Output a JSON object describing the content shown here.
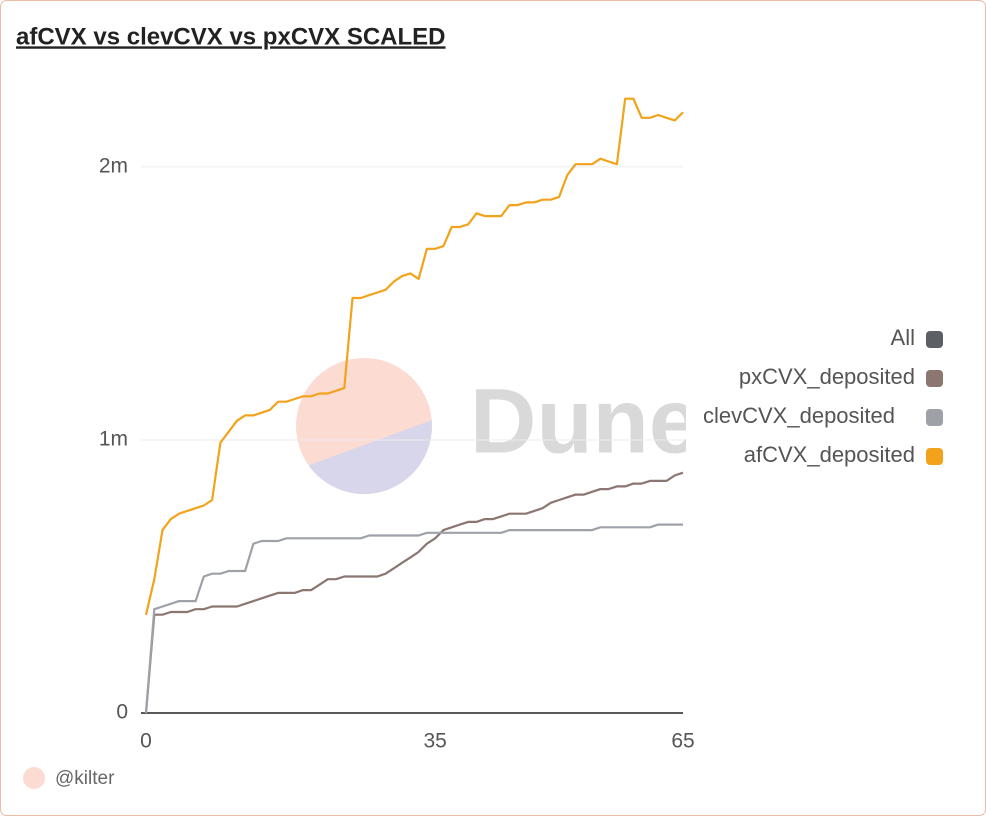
{
  "chart_data": {
    "type": "line",
    "title": "afCVX vs clevCVX vs pxCVX SCALED",
    "watermark": "Dune",
    "attribution": "@kilter",
    "legend_all": {
      "name": "All",
      "color": "#5b5f66"
    },
    "x": [
      0,
      1,
      2,
      3,
      4,
      5,
      6,
      7,
      8,
      9,
      10,
      11,
      12,
      13,
      14,
      15,
      16,
      17,
      18,
      19,
      20,
      21,
      22,
      23,
      24,
      25,
      26,
      27,
      28,
      29,
      30,
      31,
      32,
      33,
      34,
      35,
      36,
      37,
      38,
      39,
      40,
      41,
      42,
      43,
      44,
      45,
      46,
      47,
      48,
      49,
      50,
      51,
      52,
      53,
      54,
      55,
      56,
      57,
      58,
      59,
      60,
      61,
      62,
      63,
      64,
      65
    ],
    "series": [
      {
        "name": "pxCVX_deposited",
        "color": "#8c7672",
        "values": [
          0,
          360000,
          360000,
          370000,
          370000,
          370000,
          380000,
          380000,
          390000,
          390000,
          390000,
          390000,
          400000,
          410000,
          420000,
          430000,
          440000,
          440000,
          440000,
          450000,
          450000,
          470000,
          490000,
          490000,
          500000,
          500000,
          500000,
          500000,
          500000,
          510000,
          530000,
          550000,
          570000,
          590000,
          620000,
          640000,
          670000,
          680000,
          690000,
          700000,
          700000,
          710000,
          710000,
          720000,
          730000,
          730000,
          730000,
          740000,
          750000,
          770000,
          780000,
          790000,
          800000,
          800000,
          810000,
          820000,
          820000,
          830000,
          830000,
          840000,
          840000,
          850000,
          850000,
          850000,
          870000,
          880000
        ]
      },
      {
        "name": "clevCVX_deposited",
        "color": "#9ea2a8",
        "values": [
          0,
          380000,
          390000,
          400000,
          410000,
          410000,
          410000,
          500000,
          510000,
          510000,
          520000,
          520000,
          520000,
          620000,
          630000,
          630000,
          630000,
          640000,
          640000,
          640000,
          640000,
          640000,
          640000,
          640000,
          640000,
          640000,
          640000,
          650000,
          650000,
          650000,
          650000,
          650000,
          650000,
          650000,
          660000,
          660000,
          660000,
          660000,
          660000,
          660000,
          660000,
          660000,
          660000,
          660000,
          670000,
          670000,
          670000,
          670000,
          670000,
          670000,
          670000,
          670000,
          670000,
          670000,
          670000,
          680000,
          680000,
          680000,
          680000,
          680000,
          680000,
          680000,
          690000,
          690000,
          690000,
          690000
        ]
      },
      {
        "name": "afCVX_deposited",
        "color": "#f2a31b",
        "values": [
          360000,
          490000,
          670000,
          710000,
          730000,
          740000,
          750000,
          760000,
          780000,
          990000,
          1030000,
          1070000,
          1090000,
          1090000,
          1100000,
          1110000,
          1140000,
          1140000,
          1150000,
          1160000,
          1160000,
          1170000,
          1170000,
          1180000,
          1190000,
          1520000,
          1520000,
          1530000,
          1540000,
          1550000,
          1580000,
          1600000,
          1610000,
          1590000,
          1700000,
          1700000,
          1710000,
          1780000,
          1780000,
          1790000,
          1830000,
          1820000,
          1820000,
          1820000,
          1860000,
          1860000,
          1870000,
          1870000,
          1880000,
          1880000,
          1890000,
          1970000,
          2010000,
          2010000,
          2010000,
          2030000,
          2020000,
          2010000,
          2250000,
          2250000,
          2180000,
          2180000,
          2190000,
          2180000,
          2170000,
          2200000
        ]
      }
    ],
    "xlim": [
      0,
      65
    ],
    "xticks": [
      0,
      35,
      65
    ],
    "ylim": [
      0,
      2300000
    ],
    "yticks": [
      0,
      {
        "value": 1000000,
        "label": "1m"
      },
      {
        "value": 2000000,
        "label": "2m"
      }
    ],
    "grid": true
  }
}
